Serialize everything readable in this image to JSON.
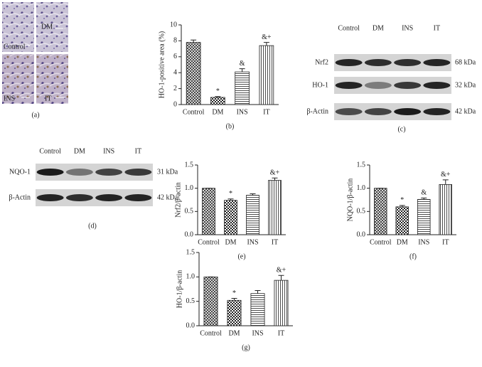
{
  "chart_data": [
    {
      "type": "bar",
      "panel_label": "(b)",
      "ylabel": "HO-1-positive area (%)",
      "categories": [
        "Control",
        "DM",
        "INS",
        "IT"
      ],
      "values": [
        7.8,
        0.9,
        4.1,
        7.4
      ],
      "errors": [
        0.3,
        0.1,
        0.4,
        0.4
      ],
      "annotations": [
        null,
        "*",
        "&",
        "&+"
      ],
      "patterns": [
        "crosshatch",
        "checker",
        "horizontal",
        "vertical"
      ],
      "ylim": [
        0,
        10
      ],
      "yticks": [
        0,
        2,
        4,
        6,
        8,
        10
      ]
    },
    {
      "type": "bar",
      "panel_label": "(e)",
      "ylabel": "Nrf2/β-actin",
      "categories": [
        "Control",
        "DM",
        "INS",
        "IT"
      ],
      "values": [
        1.0,
        0.74,
        0.85,
        1.17
      ],
      "errors": [
        0,
        0.03,
        0.03,
        0.05
      ],
      "annotations": [
        null,
        "*",
        null,
        "&+"
      ],
      "patterns": [
        "crosshatch",
        "checker",
        "horizontal",
        "vertical"
      ],
      "ylim": [
        0,
        1.5
      ],
      "yticks": [
        {
          "value": 0,
          "label": "0.0"
        },
        0.5,
        {
          "value": 1,
          "label": "1.0"
        },
        1.5
      ]
    },
    {
      "type": "bar",
      "panel_label": "(f)",
      "ylabel": "NQO-1/β-actin",
      "categories": [
        "Control",
        "DM",
        "INS",
        "IT"
      ],
      "values": [
        1.0,
        0.6,
        0.76,
        1.08
      ],
      "errors": [
        0,
        0.03,
        0.03,
        0.1
      ],
      "annotations": [
        null,
        "*",
        "&",
        "&+"
      ],
      "patterns": [
        "crosshatch",
        "checker",
        "horizontal",
        "vertical"
      ],
      "ylim": [
        0,
        1.5
      ],
      "yticks": [
        {
          "value": 0,
          "label": "0.0"
        },
        0.5,
        {
          "value": 1,
          "label": "1.0"
        },
        1.5
      ]
    },
    {
      "type": "bar",
      "panel_label": "(g)",
      "ylabel": "HO-1/β-actin",
      "categories": [
        "Control",
        "DM",
        "INS",
        "IT"
      ],
      "values": [
        1.0,
        0.52,
        0.66,
        0.93
      ],
      "errors": [
        0,
        0.04,
        0.06,
        0.1
      ],
      "annotations": [
        null,
        "*",
        null,
        "&+"
      ],
      "patterns": [
        "crosshatch",
        "checker",
        "horizontal",
        "vertical"
      ],
      "ylim": [
        0,
        1.5
      ],
      "yticks": [
        {
          "value": 0,
          "label": "0.0"
        },
        0.5,
        {
          "value": 1,
          "label": "1.0"
        },
        1.5
      ]
    }
  ],
  "histology": {
    "panel_label": "(a)",
    "labels": [
      "Control",
      "DM",
      "INS",
      "IT"
    ]
  },
  "blot_c": {
    "panel_label": "(c)",
    "lanes": [
      "Control",
      "DM",
      "INS",
      "IT"
    ],
    "rows": [
      {
        "name": "Nrf2",
        "size": "68 kDa"
      },
      {
        "name": "HO-1",
        "size": "32 kDa"
      },
      {
        "name": "β-Actin",
        "size": "42 kDa"
      }
    ]
  },
  "blot_d": {
    "panel_label": "(d)",
    "lanes": [
      "Control",
      "DM",
      "INS",
      "IT"
    ],
    "rows": [
      {
        "name": "NQO-1",
        "size": "31 kDa"
      },
      {
        "name": "β-Actin",
        "size": "42 kDa"
      }
    ]
  }
}
